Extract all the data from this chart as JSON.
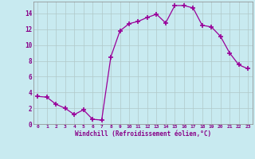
{
  "x": [
    0,
    1,
    2,
    3,
    4,
    5,
    6,
    7,
    8,
    9,
    10,
    11,
    12,
    13,
    14,
    15,
    16,
    17,
    18,
    19,
    20,
    21,
    22,
    23
  ],
  "y": [
    3.5,
    3.4,
    2.5,
    2.0,
    1.2,
    1.8,
    0.6,
    0.5,
    8.5,
    11.8,
    12.7,
    13.0,
    13.5,
    13.9,
    12.8,
    15.0,
    15.0,
    14.7,
    12.5,
    12.3,
    11.1,
    9.0,
    7.5,
    7.0
  ],
  "line_color": "#990099",
  "marker": "P",
  "marker_size": 2.5,
  "bg_color": "#c8eaf0",
  "grid_color": "#b0c8c8",
  "xlabel": "Windchill (Refroidissement éolien,°C)",
  "xlabel_color": "#880088",
  "tick_color": "#880088",
  "xlim": [
    -0.5,
    23.5
  ],
  "ylim": [
    0,
    15.5
  ],
  "yticks": [
    0,
    2,
    4,
    6,
    8,
    10,
    12,
    14
  ],
  "xticks": [
    0,
    1,
    2,
    3,
    4,
    5,
    6,
    7,
    8,
    9,
    10,
    11,
    12,
    13,
    14,
    15,
    16,
    17,
    18,
    19,
    20,
    21,
    22,
    23
  ],
  "spine_color": "#888888"
}
